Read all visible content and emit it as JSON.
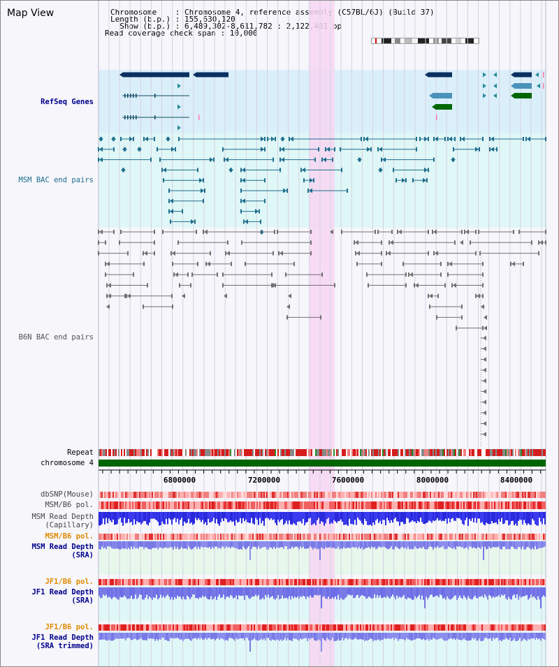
{
  "view": {
    "title": "Map View",
    "info_lines": [
      "Chromosome    : Chromosome 4, reference assembly (C57BL/6J) (Build 37)",
      "Length (b.p.) : 155,630,120",
      "  Show (b.p.) : 6,489,302-8,611,782 : 2,122,481 bp",
      "Read coverage check span : 10,000"
    ]
  },
  "tracks": {
    "refseq": "RefSeq Genes",
    "msm_bac": "MSM BAC end pairs",
    "b6n_bac": "B6N BAC end pairs",
    "repeat": "Repeat",
    "chromosome": "chromosome 4",
    "dbsnp": "dbSNP(Mouse)",
    "msm_pol": "MSM/B6 pol.",
    "msm_depth_cap": "MSM Read Depth\n(Capillary)",
    "msm_pol2": "MSM/B6 pol.",
    "msm_depth_sra": "MSM Read Depth\n(SRA)",
    "jf1_pol": "JF1/B6 pol.",
    "jf1_depth_sra": "JF1 Read Depth\n(SRA)",
    "jf1_pol2": "JF1/B6 pol.",
    "jf1_depth_trim": "JF1 Read Depth\n(SRA trimmed)"
  },
  "axis": {
    "ticks": [
      "6800000",
      "7200000",
      "7600000",
      "8000000",
      "8400000"
    ]
  },
  "colors": {
    "refseq_bg": "#dbeffa",
    "bac_bg": "#e0f7f7",
    "highlight": "#f7d6f2",
    "gene_dark": "#0a3060",
    "gene_mid": "#4a92ba",
    "gene_green": "#006600",
    "msm_feature": "#1d6d8c",
    "b6n_feature": "#707070",
    "chromosome": "#006400",
    "depth_blue": "#2a2adc",
    "depth_light": "#7a7ae6"
  }
}
